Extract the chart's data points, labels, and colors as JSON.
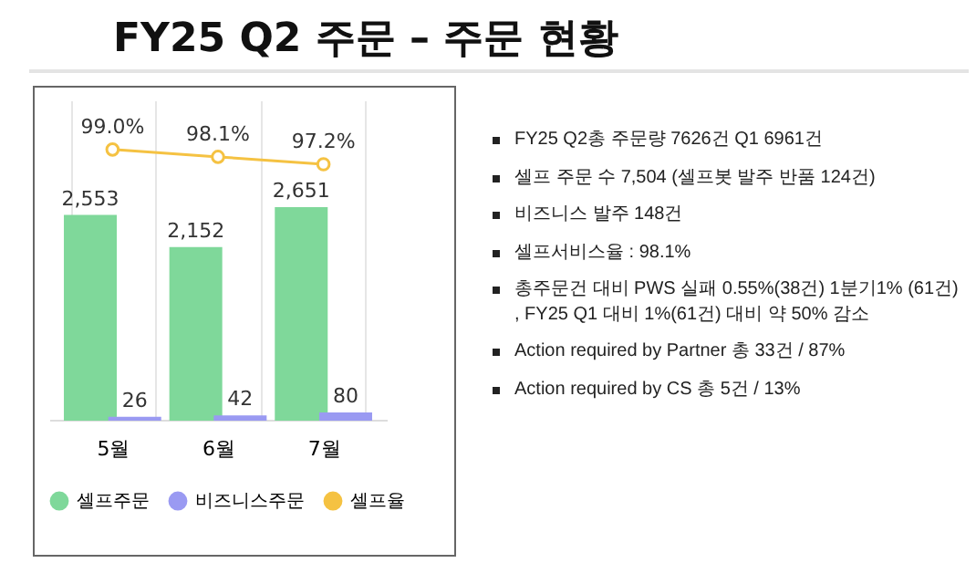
{
  "chart_data": {
    "type": "bar",
    "title": "FY25 Q2 주문 – 주문 현황",
    "categories": [
      "5월",
      "6월",
      "7월"
    ],
    "series": [
      {
        "name": "셀프주문",
        "color": "#7fd89a",
        "values": [
          2553,
          2152,
          2651
        ],
        "value_labels": [
          "2,553",
          "2,152",
          "2,651"
        ]
      },
      {
        "name": "비즈니스주문",
        "color": "#9a9af2",
        "values": [
          26,
          42,
          80
        ],
        "value_labels": [
          "26",
          "42",
          "80"
        ]
      },
      {
        "name": "셀프율",
        "type": "line",
        "axis": "y2",
        "color": "#f5c242",
        "values": [
          99.0,
          98.1,
          97.2
        ],
        "value_labels": [
          "99.0%",
          "98.1%",
          "97.2%"
        ],
        "marker": "circle",
        "line_style": "solid"
      }
    ],
    "ylim": [
      0,
      4000
    ],
    "y2lim": [
      66,
      105
    ],
    "tick_labels": "x",
    "grid": "x",
    "legend": "bottom",
    "annotations": [
      "FY25 Q2총 주문량 7626건  Q1 6961건",
      "셀프 주문 수 7,504 (셀프봇 발주 반품 124건)",
      "비즈니스 발주 148건",
      "셀프서비스율 : 98.1%",
      "총주문건 대비 PWS 실패 0.55%(38건)  1분기1% (61건) , FY25 Q1 대비 1%(61건) 대비 약 50% 감소",
      "Action required by Partner 총 33건 / 87%",
      "Action required by CS 총 5건 / 13%"
    ]
  }
}
